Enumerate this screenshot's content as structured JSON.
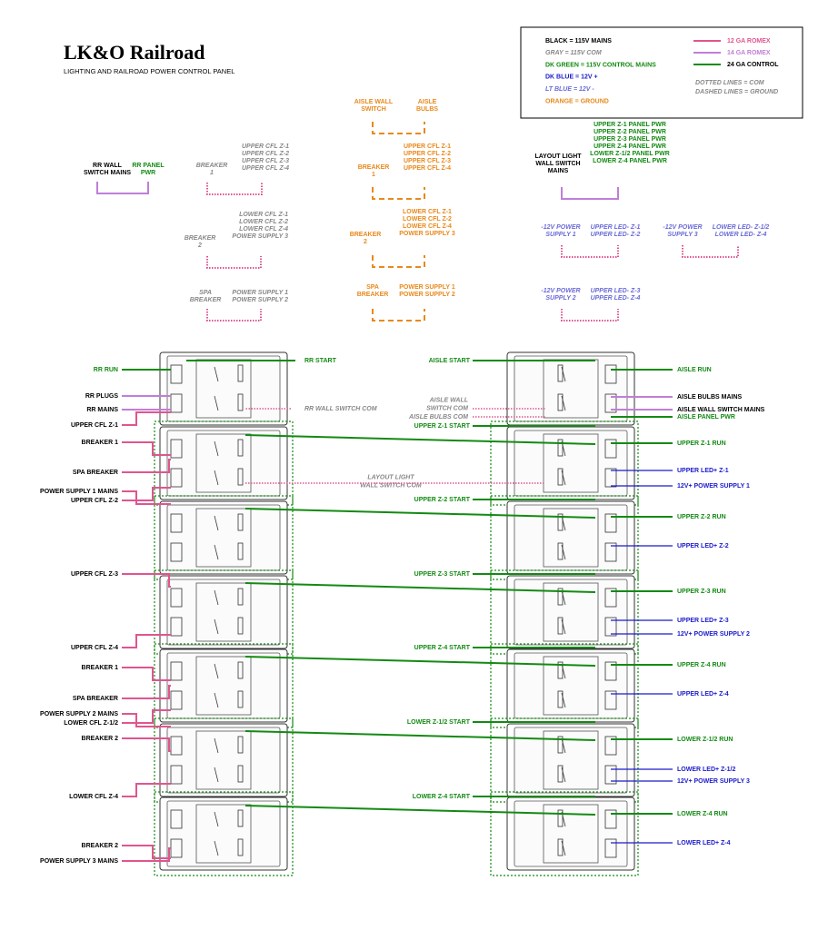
{
  "header": {
    "title": "LK&O Railroad",
    "subtitle": "LIGHTING AND RAILROAD POWER CONTROL PANEL"
  },
  "legend": {
    "colors": [
      "BLACK = 115V MAINS",
      "GRAY = 115V COM",
      "DK GREEN = 115V CONTROL MAINS",
      "DK BLUE = 12V +",
      "LT BLUE = 12V -",
      "ORANGE = GROUND"
    ],
    "wires": [
      "12 GA ROMEX",
      "14 GA ROMEX",
      "24 GA CONTROL"
    ],
    "notes": [
      "DOTTED LINES = COM",
      "DASHED LINES = GROUND"
    ]
  },
  "top_groups": [
    {
      "left": [
        "RR WALL",
        "SWITCH MAINS"
      ],
      "right": [
        "RR PANEL",
        "PWR"
      ]
    },
    {
      "left": [
        "BREAKER",
        "1"
      ],
      "right": [
        "UPPER CFL Z-1",
        "UPPER CFL Z-2",
        "UPPER CFL Z-3",
        "UPPER CFL Z-4"
      ]
    },
    {
      "left": [
        "AISLE WALL",
        "SWITCH"
      ],
      "right": [
        "AISLE",
        "BULBS"
      ]
    },
    {
      "left": [
        "BREAKER",
        "1"
      ],
      "right": [
        "UPPER CFL Z-1",
        "UPPER CFL Z-2",
        "UPPER CFL Z-3",
        "UPPER CFL Z-4"
      ]
    },
    {
      "left": [
        "LAYOUT LIGHT",
        "WALL SWITCH",
        "MAINS"
      ],
      "right": [
        "UPPER Z-1 PANEL PWR",
        "UPPER Z-2 PANEL PWR",
        "UPPER Z-3 PANEL PWR",
        "UPPER Z-4 PANEL PWR",
        "LOWER Z-1/2 PANEL PWR",
        "LOWER Z-4 PANEL PWR"
      ]
    },
    {
      "left": [
        "BREAKER",
        "2"
      ],
      "right": [
        "LOWER CFL Z-1",
        "LOWER CFL Z-2",
        "LOWER CFL Z-4",
        "POWER SUPPLY 3"
      ]
    },
    {
      "left": [
        "BREAKER",
        "2"
      ],
      "right": [
        "LOWER CFL Z-1",
        "LOWER CFL Z-2",
        "LOWER CFL Z-4",
        "POWER SUPPLY 3"
      ]
    },
    {
      "left": [
        "-12V POWER",
        "SUPPLY 1"
      ],
      "right": [
        "UPPER LED- Z-1",
        "UPPER LED- Z-2"
      ]
    },
    {
      "left": [
        "-12V POWER",
        "SUPPLY 3"
      ],
      "right": [
        "LOWER LED- Z-1/2",
        "LOWER LED- Z-4"
      ]
    },
    {
      "left": [
        "SPA",
        "BREAKER"
      ],
      "right": [
        "POWER SUPPLY 1",
        "POWER SUPPLY 2"
      ]
    },
    {
      "left": [
        "SPA",
        "BREAKER"
      ],
      "right": [
        "POWER SUPPLY 1",
        "POWER SUPPLY 2"
      ]
    },
    {
      "left": [
        "-12V POWER",
        "SUPPLY 2"
      ],
      "right": [
        "UPPER LED- Z-3",
        "UPPER LED- Z-4"
      ]
    }
  ],
  "panel": {
    "left_labels": [
      "RR RUN",
      "RR PLUGS",
      "RR MAINS",
      "UPPER CFL Z-1",
      "BREAKER 1",
      "SPA BREAKER",
      "POWER SUPPLY 1 MAINS",
      "UPPER CFL Z-2",
      "UPPER CFL Z-3",
      "UPPER CFL Z-4",
      "BREAKER 1",
      "SPA BREAKER",
      "POWER SUPPLY 2 MAINS",
      "LOWER CFL Z-1/2",
      "BREAKER 2",
      "LOWER CFL Z-4",
      "BREAKER 2",
      "POWER SUPPLY 3 MAINS"
    ],
    "right_labels": [
      "AISLE RUN",
      "AISLE BULBS MAINS",
      "AISLE WALL SWITCH MAINS",
      "AISLE PANEL PWR",
      "UPPER Z-1 RUN",
      "UPPER LED+ Z-1",
      "12V+ POWER SUPPLY 1",
      "UPPER Z-2 RUN",
      "UPPER LED+ Z-2",
      "UPPER Z-3 RUN",
      "UPPER LED+ Z-3",
      "12V+ POWER SUPPLY 2",
      "UPPER Z-4 RUN",
      "UPPER LED+ Z-4",
      "LOWER Z-1/2 RUN",
      "LOWER LED+ Z-1/2",
      "12V+ POWER SUPPLY 3",
      "LOWER Z-4 RUN",
      "LOWER LED+ Z-4"
    ],
    "center_labels": [
      [
        "RR START"
      ],
      [
        "RR WALL SWITCH COM"
      ],
      [
        "AISLE START"
      ],
      [
        "AISLE WALL",
        "SWITCH COM"
      ],
      [
        "AISLE BULBS COM"
      ],
      [
        "UPPER Z-1 START"
      ],
      [
        "LAYOUT LIGHT",
        "WALL SWITCH COM"
      ],
      [
        "UPPER Z-2 START"
      ],
      [
        "UPPER Z-3 START"
      ],
      [
        "UPPER Z-4 START"
      ],
      [
        "LOWER Z-1/2 START"
      ],
      [
        "LOWER Z-4 START"
      ]
    ]
  }
}
